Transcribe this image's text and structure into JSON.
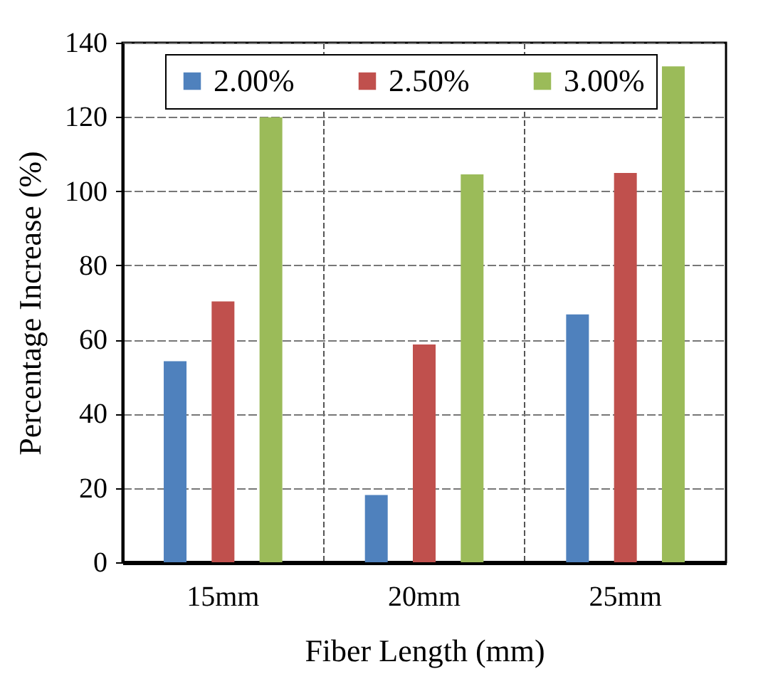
{
  "chart_data": {
    "type": "bar",
    "xlabel": "Fiber Length (mm)",
    "ylabel": "Percentage Increase (%)",
    "categories": [
      "15mm",
      "20mm",
      "25mm"
    ],
    "series": [
      {
        "name": "2.00%",
        "color": "#4f81bd",
        "values": [
          54.2,
          18.1,
          66.8
        ]
      },
      {
        "name": "2.50%",
        "color": "#c0504d",
        "values": [
          70.3,
          58.7,
          104.9
        ]
      },
      {
        "name": "3.00%",
        "color": "#9bbb59",
        "values": [
          119.9,
          104.5,
          133.6
        ]
      }
    ],
    "ylim": [
      0,
      140
    ],
    "yticks": [
      0,
      20,
      40,
      60,
      80,
      100,
      120,
      140
    ],
    "grid": true,
    "legend": "top"
  }
}
